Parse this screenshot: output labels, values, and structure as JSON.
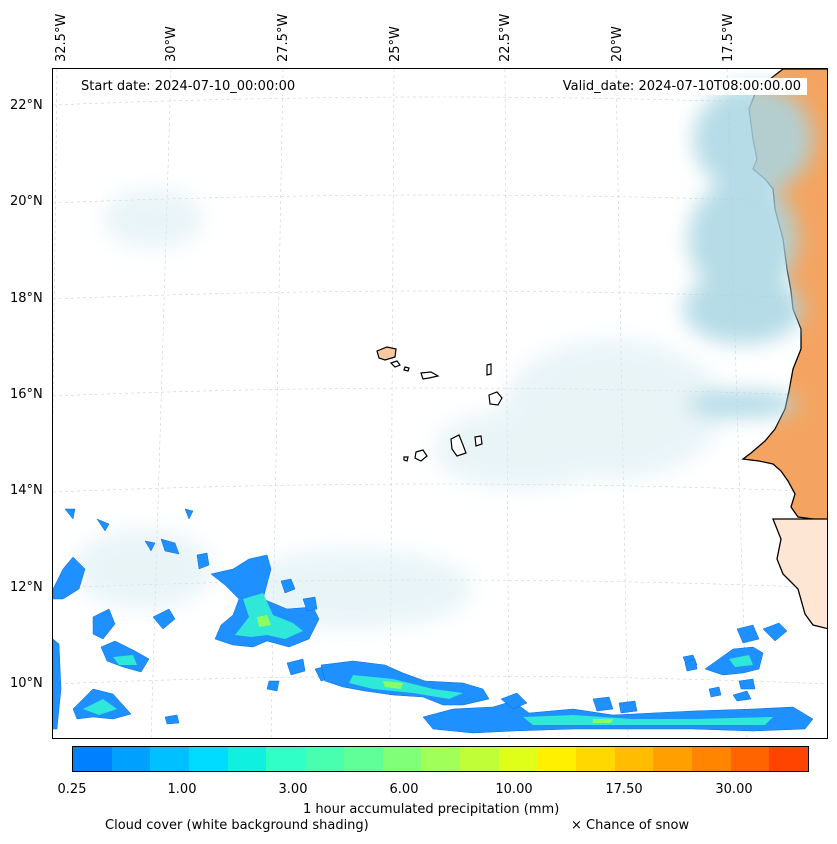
{
  "header": {
    "start_date": "Start date: 2024-07-10_00:00:00",
    "valid_date": "Valid_date: 2024-07-10T08:00:00.00"
  },
  "axes": {
    "lon_labels": [
      "32.5°W",
      "30°W",
      "27.5°W",
      "25°W",
      "22.5°W",
      "20°W",
      "17.5°W"
    ],
    "lat_labels": [
      "22°N",
      "20°N",
      "18°N",
      "16°N",
      "14°N",
      "12°N",
      "10°N"
    ]
  },
  "colorbar": {
    "label": "1 hour accumulated precipitation (mm)",
    "ticks": [
      "0.25",
      "1.00",
      "3.00",
      "6.00",
      "10.00",
      "17.50",
      "30.00"
    ],
    "colors": [
      "#0080ff",
      "#00a0ff",
      "#00c0ff",
      "#00dcff",
      "#10f0e0",
      "#30ffc8",
      "#48ffb0",
      "#60ff98",
      "#80ff78",
      "#a0ff58",
      "#c0ff38",
      "#e0ff18",
      "#fff000",
      "#ffd800",
      "#ffbc00",
      "#ffa000",
      "#ff8400",
      "#ff6400",
      "#ff4400"
    ]
  },
  "footer": {
    "cloud_label": "Cloud cover (white background shading)",
    "snow_label": "× Chance of snow"
  },
  "colors": {
    "land": "#f4a460",
    "cloud": "#a9d6e3",
    "precip_light": "#1e90ff",
    "precip_mid": "#2fe8d8",
    "coast": "#000000"
  }
}
